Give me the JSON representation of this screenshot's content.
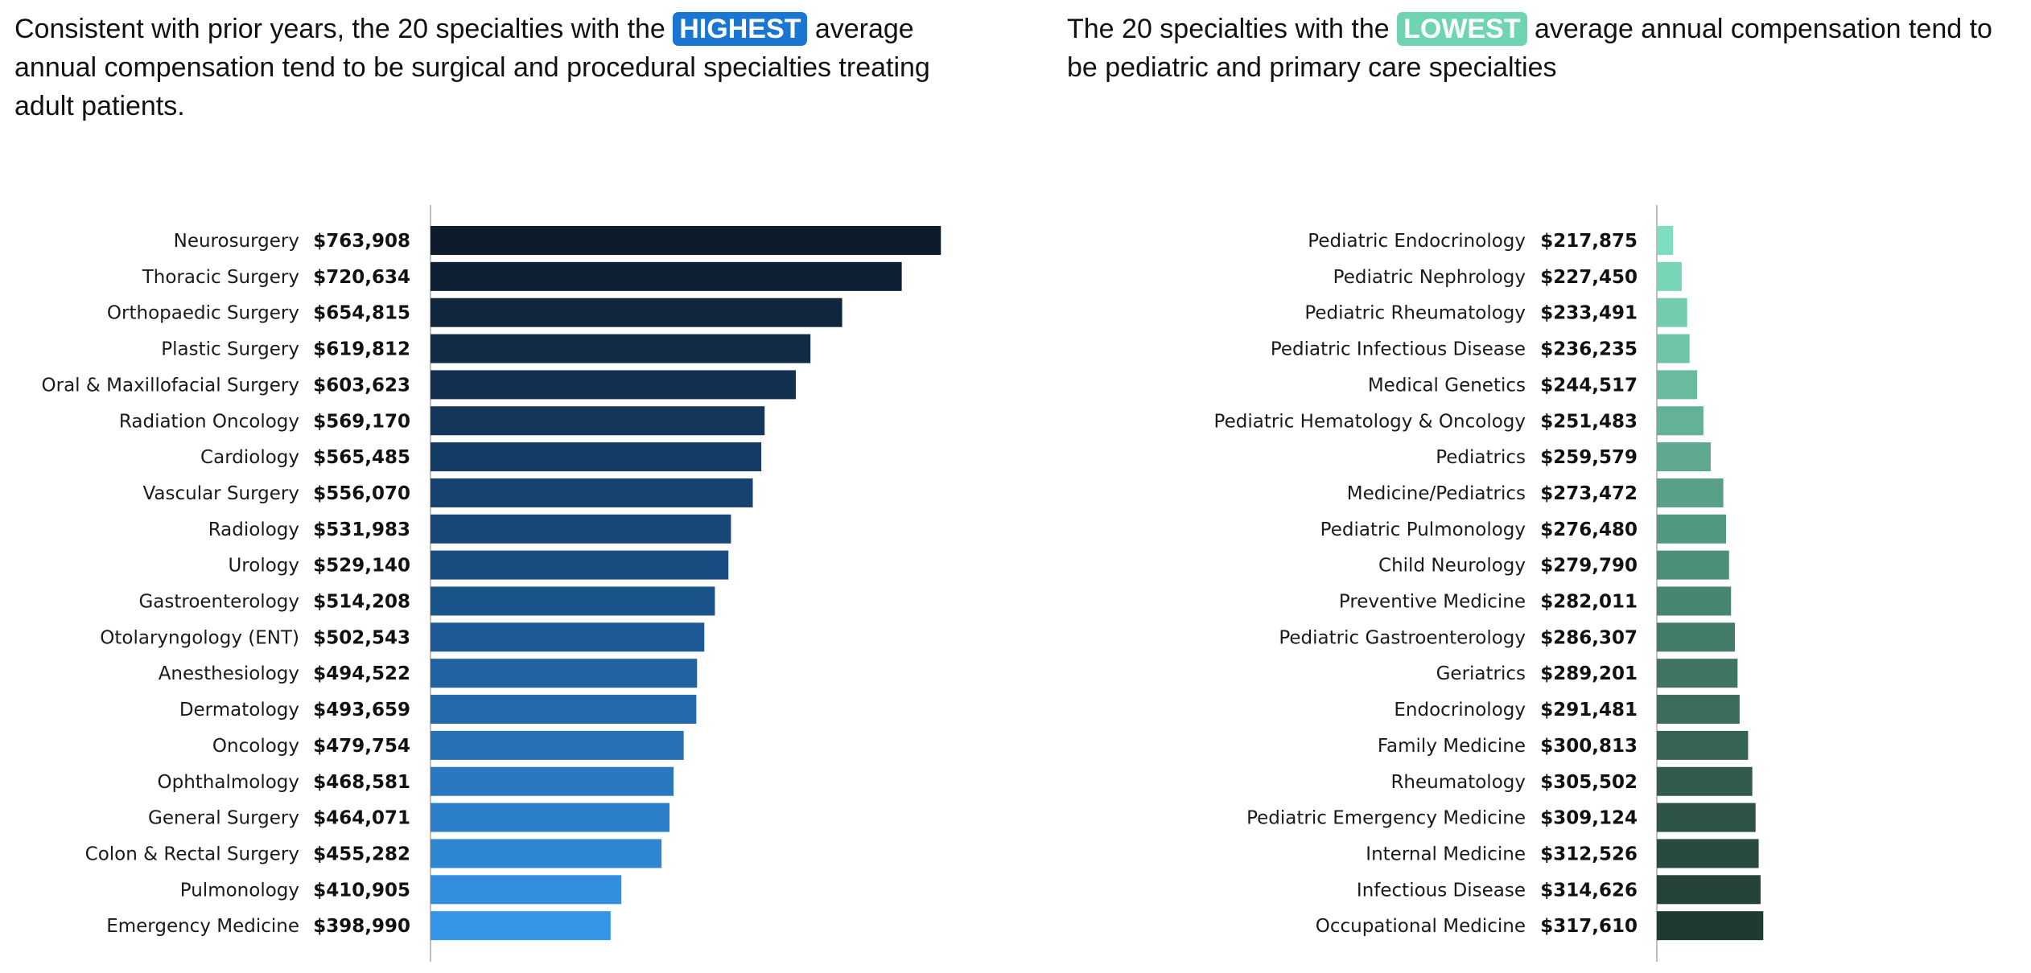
{
  "headlines": {
    "left": {
      "before": "Consistent with prior years, the 20 specialties with the ",
      "pill": "HIGHEST",
      "after": " average annual compensation tend to be surgical and procedural specialties treating adult patients."
    },
    "right": {
      "before": "The 20 specialties with the ",
      "pill": "LOWEST",
      "after": " average annual compensation tend to be pediatric and primary care specialties"
    }
  },
  "colors": {
    "highest_pill": "#1976d2",
    "lowest_pill": "#6fd4b2",
    "left_gradient": [
      "#0d1b2a",
      "#1a4f86",
      "#3596e8"
    ],
    "right_gradient": [
      "#7fdec0",
      "#4a8a74",
      "#1f3a2e"
    ]
  },
  "chart_data": [
    {
      "type": "bar",
      "orientation": "horizontal",
      "title": "",
      "xlabel": "",
      "ylabel": "",
      "categories": [
        "Neurosurgery",
        "Thoracic Surgery",
        "Orthopaedic Surgery",
        "Plastic Surgery",
        "Oral & Maxillofacial Surgery",
        "Radiation Oncology",
        "Cardiology",
        "Vascular Surgery",
        "Radiology",
        "Urology",
        "Gastroenterology",
        "Otolaryngology (ENT)",
        "Anesthesiology",
        "Dermatology",
        "Oncology",
        "Ophthalmology",
        "General Surgery",
        "Colon & Rectal Surgery",
        "Pulmonology",
        "Emergency Medicine"
      ],
      "values": [
        763908,
        720634,
        654815,
        619812,
        603623,
        569170,
        565485,
        556070,
        531983,
        529140,
        514208,
        502543,
        494522,
        493659,
        479754,
        468581,
        464071,
        455282,
        410905,
        398990
      ],
      "value_labels": [
        "$763,908",
        "$720,634",
        "$654,815",
        "$619,812",
        "$603,623",
        "$569,170",
        "$565,485",
        "$556,070",
        "$531,983",
        "$529,140",
        "$514,208",
        "$502,543",
        "$494,522",
        "$493,659",
        "$479,754",
        "$468,581",
        "$464,071",
        "$455,282",
        "$410,905",
        "$398,990"
      ],
      "xlim": [
        200000,
        763908
      ],
      "grid": false,
      "legend": "none"
    },
    {
      "type": "bar",
      "orientation": "horizontal",
      "title": "",
      "xlabel": "",
      "ylabel": "",
      "categories": [
        "Pediatric Endocrinology",
        "Pediatric Nephrology",
        "Pediatric Rheumatology",
        "Pediatric Infectious Disease",
        "Medical Genetics",
        "Pediatric Hematology & Oncology",
        "Pediatrics",
        "Medicine/Pediatrics",
        "Pediatric Pulmonology",
        "Child Neurology",
        "Preventive Medicine",
        "Pediatric Gastroenterology",
        "Geriatrics",
        "Endocrinology",
        "Family Medicine",
        "Rheumatology",
        "Pediatric Emergency Medicine",
        "Internal Medicine",
        "Infectious Disease",
        "Occupational Medicine"
      ],
      "values": [
        217875,
        227450,
        233491,
        236235,
        244517,
        251483,
        259579,
        273472,
        276480,
        279790,
        282011,
        286307,
        289201,
        291481,
        300813,
        305502,
        309124,
        312526,
        314626,
        317610
      ],
      "value_labels": [
        "$217,875",
        "$227,450",
        "$233,491",
        "$236,235",
        "$244,517",
        "$251,483",
        "$259,579",
        "$273,472",
        "$276,480",
        "$279,790",
        "$282,011",
        "$286,307",
        "$289,201",
        "$291,481",
        "$300,813",
        "$305,502",
        "$309,124",
        "$312,526",
        "$314,626",
        "$317,610"
      ],
      "xlim": [
        200000,
        763908
      ],
      "grid": false,
      "legend": "none"
    }
  ]
}
